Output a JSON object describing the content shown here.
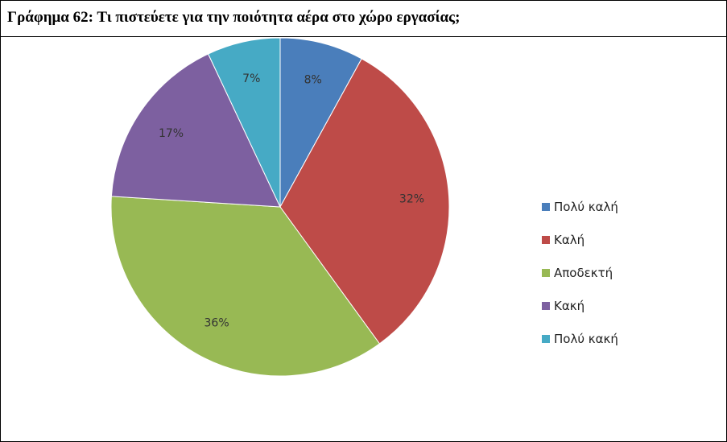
{
  "title": "Γράφημα 62: Τι πιστεύετε για την ποιότητα αέρα στο χώρο εργασίας;",
  "chart_data": {
    "type": "pie",
    "title": "Γράφημα 62: Τι πιστεύετε για την ποιότητα αέρα στο χώρο εργασίας;",
    "legend_position": "right",
    "slices": [
      {
        "name": "Πολύ καλή",
        "value": 8,
        "label": "8%",
        "color": "#4a7ebb"
      },
      {
        "name": "Καλή",
        "value": 32,
        "label": "32%",
        "color": "#be4b48"
      },
      {
        "name": "Αποδεκτή",
        "value": 36,
        "label": "36%",
        "color": "#98b954"
      },
      {
        "name": "Κακή",
        "value": 17,
        "label": "17%",
        "color": "#7d60a0"
      },
      {
        "name": "Πολύ κακή",
        "value": 7,
        "label": "7%",
        "color": "#46aac5"
      }
    ]
  }
}
